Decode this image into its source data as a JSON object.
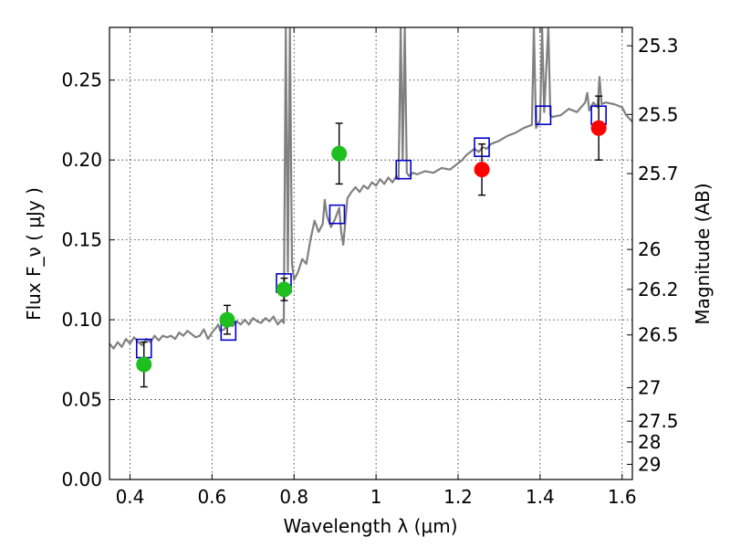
{
  "chart_data": {
    "type": "scatter",
    "title": "",
    "xlabel": "Wavelength  λ (μm)",
    "ylabel": "Flux  F_ν  ( μJy )",
    "ylabel_right": "Magnitude (AB)",
    "xlim": [
      0.35,
      1.625
    ],
    "ylim": [
      0.0,
      0.283
    ],
    "grid": true,
    "x_ticks": [
      {
        "value": 0.4,
        "label": "0.4"
      },
      {
        "value": 0.6,
        "label": "0.6"
      },
      {
        "value": 0.8,
        "label": "0.8"
      },
      {
        "value": 1.0,
        "label": "1"
      },
      {
        "value": 1.2,
        "label": "1.2"
      },
      {
        "value": 1.4,
        "label": "1.4"
      },
      {
        "value": 1.6,
        "label": "1.6"
      }
    ],
    "y_ticks": [
      {
        "value": 0.0,
        "label": "0.00"
      },
      {
        "value": 0.05,
        "label": "0.05"
      },
      {
        "value": 0.1,
        "label": "0.10"
      },
      {
        "value": 0.15,
        "label": "0.15"
      },
      {
        "value": 0.2,
        "label": "0.20"
      },
      {
        "value": 0.25,
        "label": "0.25"
      }
    ],
    "right_ticks": [
      {
        "flux": 0.2715,
        "label": "25.3"
      },
      {
        "flux": 0.2285,
        "label": "25.5"
      },
      {
        "flux": 0.1915,
        "label": "25.7"
      },
      {
        "flux": 0.144,
        "label": "26"
      },
      {
        "flux": 0.119,
        "label": "26.2"
      },
      {
        "flux": 0.0905,
        "label": "26.5"
      },
      {
        "flux": 0.0575,
        "label": "27"
      },
      {
        "flux": 0.0365,
        "label": "27.5"
      },
      {
        "flux": 0.0235,
        "label": "28"
      },
      {
        "flux": 0.0095,
        "label": "29"
      }
    ],
    "series": [
      {
        "kind": "points-green",
        "color": "#1fbf1f",
        "points": [
          {
            "x": 0.434,
            "y": 0.072,
            "err": 0.014
          },
          {
            "x": 0.637,
            "y": 0.1,
            "err": 0.009
          },
          {
            "x": 0.776,
            "y": 0.119,
            "err": 0.007
          },
          {
            "x": 0.91,
            "y": 0.204,
            "err": 0.019
          }
        ]
      },
      {
        "kind": "points-red",
        "color": "#ff0000",
        "points": [
          {
            "x": 1.258,
            "y": 0.194,
            "err": 0.016
          },
          {
            "x": 1.543,
            "y": 0.22,
            "err": 0.02
          }
        ]
      },
      {
        "kind": "model-boxes",
        "color": "#0000cc",
        "points": [
          {
            "x": 0.434,
            "y": 0.082
          },
          {
            "x": 0.64,
            "y": 0.093
          },
          {
            "x": 0.775,
            "y": 0.123
          },
          {
            "x": 0.905,
            "y": 0.166
          },
          {
            "x": 1.067,
            "y": 0.194
          },
          {
            "x": 1.258,
            "y": 0.208
          },
          {
            "x": 1.408,
            "y": 0.228
          },
          {
            "x": 1.543,
            "y": 0.228
          }
        ]
      },
      {
        "kind": "sed-model",
        "color": "#808080",
        "points": [
          [
            0.35,
            0.085
          ],
          [
            0.36,
            0.082
          ],
          [
            0.37,
            0.086
          ],
          [
            0.38,
            0.083
          ],
          [
            0.39,
            0.088
          ],
          [
            0.4,
            0.085
          ],
          [
            0.41,
            0.089
          ],
          [
            0.42,
            0.086
          ],
          [
            0.43,
            0.084
          ],
          [
            0.44,
            0.088
          ],
          [
            0.45,
            0.086
          ],
          [
            0.46,
            0.09
          ],
          [
            0.47,
            0.087
          ],
          [
            0.48,
            0.09
          ],
          [
            0.49,
            0.089
          ],
          [
            0.5,
            0.09
          ],
          [
            0.51,
            0.088
          ],
          [
            0.52,
            0.092
          ],
          [
            0.53,
            0.09
          ],
          [
            0.54,
            0.093
          ],
          [
            0.55,
            0.091
          ],
          [
            0.56,
            0.089
          ],
          [
            0.57,
            0.09
          ],
          [
            0.58,
            0.094
          ],
          [
            0.59,
            0.088
          ],
          [
            0.6,
            0.092
          ],
          [
            0.61,
            0.095
          ],
          [
            0.615,
            0.097
          ],
          [
            0.62,
            0.093
          ],
          [
            0.63,
            0.094
          ],
          [
            0.64,
            0.098
          ],
          [
            0.65,
            0.096
          ],
          [
            0.66,
            0.099
          ],
          [
            0.67,
            0.097
          ],
          [
            0.68,
            0.1
          ],
          [
            0.69,
            0.097
          ],
          [
            0.7,
            0.101
          ],
          [
            0.71,
            0.099
          ],
          [
            0.72,
            0.098
          ],
          [
            0.73,
            0.101
          ],
          [
            0.74,
            0.099
          ],
          [
            0.75,
            0.102
          ],
          [
            0.76,
            0.097
          ],
          [
            0.77,
            0.1
          ],
          [
            0.775,
            0.098
          ],
          [
            0.78,
            0.283
          ],
          [
            0.785,
            0.13
          ],
          [
            0.79,
            0.283
          ],
          [
            0.795,
            0.135
          ],
          [
            0.8,
            0.125
          ],
          [
            0.81,
            0.13
          ],
          [
            0.82,
            0.138
          ],
          [
            0.83,
            0.135
          ],
          [
            0.84,
            0.15
          ],
          [
            0.85,
            0.162
          ],
          [
            0.86,
            0.155
          ],
          [
            0.87,
            0.16
          ],
          [
            0.875,
            0.175
          ],
          [
            0.88,
            0.165
          ],
          [
            0.89,
            0.158
          ],
          [
            0.9,
            0.163
          ],
          [
            0.91,
            0.17
          ],
          [
            0.915,
            0.155
          ],
          [
            0.92,
            0.147
          ],
          [
            0.93,
            0.176
          ],
          [
            0.94,
            0.18
          ],
          [
            0.95,
            0.183
          ],
          [
            0.96,
            0.18
          ],
          [
            0.97,
            0.184
          ],
          [
            0.98,
            0.182
          ],
          [
            0.99,
            0.186
          ],
          [
            1.0,
            0.184
          ],
          [
            1.01,
            0.188
          ],
          [
            1.02,
            0.185
          ],
          [
            1.03,
            0.189
          ],
          [
            1.04,
            0.186
          ],
          [
            1.05,
            0.19
          ],
          [
            1.055,
            0.188
          ],
          [
            1.06,
            0.283
          ],
          [
            1.065,
            0.2
          ],
          [
            1.07,
            0.283
          ],
          [
            1.075,
            0.192
          ],
          [
            1.08,
            0.19
          ],
          [
            1.09,
            0.192
          ],
          [
            1.1,
            0.191
          ],
          [
            1.12,
            0.193
          ],
          [
            1.14,
            0.192
          ],
          [
            1.16,
            0.195
          ],
          [
            1.18,
            0.194
          ],
          [
            1.2,
            0.198
          ],
          [
            1.21,
            0.2
          ],
          [
            1.22,
            0.203
          ],
          [
            1.23,
            0.205
          ],
          [
            1.24,
            0.207
          ],
          [
            1.25,
            0.205
          ],
          [
            1.26,
            0.208
          ],
          [
            1.27,
            0.207
          ],
          [
            1.28,
            0.21
          ],
          [
            1.3,
            0.212
          ],
          [
            1.32,
            0.215
          ],
          [
            1.34,
            0.217
          ],
          [
            1.36,
            0.22
          ],
          [
            1.38,
            0.222
          ],
          [
            1.385,
            0.283
          ],
          [
            1.39,
            0.22
          ],
          [
            1.4,
            0.225
          ],
          [
            1.405,
            0.283
          ],
          [
            1.41,
            0.23
          ],
          [
            1.42,
            0.283
          ],
          [
            1.425,
            0.228
          ],
          [
            1.43,
            0.227
          ],
          [
            1.45,
            0.228
          ],
          [
            1.47,
            0.232
          ],
          [
            1.49,
            0.23
          ],
          [
            1.51,
            0.236
          ],
          [
            1.515,
            0.242
          ],
          [
            1.52,
            0.231
          ],
          [
            1.53,
            0.236
          ],
          [
            1.54,
            0.233
          ],
          [
            1.545,
            0.252
          ],
          [
            1.55,
            0.235
          ],
          [
            1.56,
            0.236
          ],
          [
            1.58,
            0.235
          ],
          [
            1.6,
            0.233
          ],
          [
            1.61,
            0.228
          ],
          [
            1.625,
            0.224
          ]
        ]
      }
    ]
  }
}
